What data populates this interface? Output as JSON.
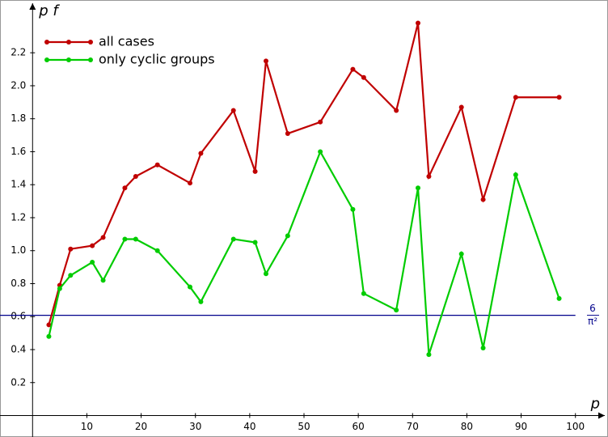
{
  "chart_data": {
    "type": "line",
    "xlabel": "p",
    "ylabel": "p f",
    "x": [
      3,
      5,
      7,
      11,
      13,
      17,
      19,
      23,
      29,
      31,
      37,
      41,
      43,
      47,
      53,
      59,
      61,
      67,
      71,
      73,
      79,
      83,
      89,
      97
    ],
    "series": [
      {
        "name": "all cases",
        "color": "#c00000",
        "values": [
          0.55,
          0.79,
          1.01,
          1.03,
          1.08,
          1.38,
          1.45,
          1.52,
          1.41,
          1.59,
          1.85,
          1.48,
          2.15,
          1.71,
          1.78,
          2.1,
          2.05,
          1.85,
          2.38,
          1.45,
          1.87,
          1.31,
          1.93,
          1.93
        ]
      },
      {
        "name": "only cyclic groups",
        "color": "#00cc00",
        "values": [
          0.48,
          0.77,
          0.85,
          0.93,
          0.82,
          1.07,
          1.07,
          1.0,
          0.78,
          0.69,
          1.07,
          1.05,
          0.86,
          1.09,
          1.6,
          1.25,
          0.74,
          0.64,
          1.38,
          0.37,
          0.98,
          0.41,
          1.46,
          0.71
        ]
      }
    ],
    "hline": {
      "value": 0.608,
      "numerator": "6",
      "denominator": "π²",
      "color": "#00008b"
    },
    "xlim": [
      -6,
      106
    ],
    "ylim": [
      -0.13,
      2.52
    ],
    "xticks": [
      10,
      20,
      30,
      40,
      50,
      60,
      70,
      80,
      90,
      100
    ],
    "yticks": [
      0.2,
      0.4,
      0.6,
      0.8,
      {
        "value": 1,
        "label": "1.0"
      },
      1.2,
      1.4,
      1.6,
      1.8,
      {
        "value": 2,
        "label": "2.0"
      },
      2.2
    ],
    "grid": false,
    "legend": "upper left"
  }
}
